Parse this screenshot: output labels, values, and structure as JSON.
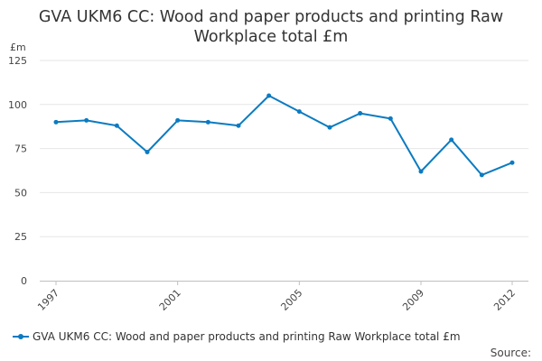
{
  "chart_data": {
    "type": "line",
    "title": "GVA UKM6 CC: Wood and paper products and printing Raw Workplace total £m",
    "title_lines": [
      "GVA UKM6 CC: Wood and paper products and printing Raw",
      "Workplace total £m"
    ],
    "ylabel": "£m",
    "ylim": [
      0,
      125
    ],
    "yticks": [
      0,
      25,
      50,
      75,
      100,
      125
    ],
    "x": [
      1997,
      1998,
      1999,
      2000,
      2001,
      2002,
      2003,
      2004,
      2005,
      2006,
      2007,
      2008,
      2009,
      2010,
      2011,
      2012
    ],
    "xticks": [
      1997,
      2001,
      2005,
      2009,
      2012
    ],
    "series": [
      {
        "name": "GVA UKM6 CC: Wood and paper products and printing Raw Workplace total £m",
        "values": [
          90,
          91,
          88,
          73,
          91,
          90,
          88,
          105,
          96,
          87,
          95,
          92,
          62,
          80,
          60,
          67
        ]
      }
    ],
    "grid": true,
    "legend": "bottom-left",
    "color": "#0b7bc1"
  },
  "source_label": "Source:"
}
